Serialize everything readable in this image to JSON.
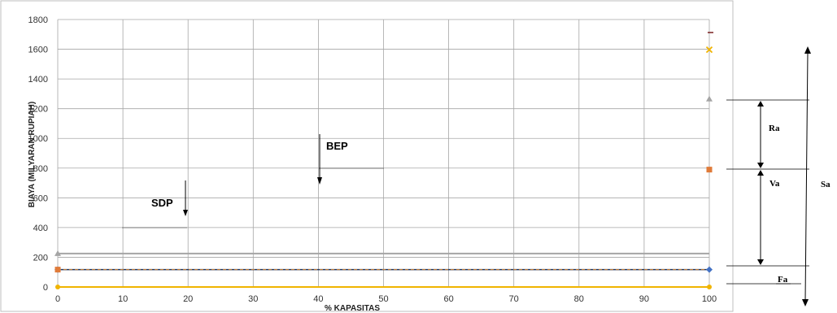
{
  "chart_data": {
    "type": "line",
    "title": "",
    "xlabel": "% KAPASITAS",
    "ylabel": "BIAYA (MILYARAN RUPIAH)",
    "xlim": [
      0,
      100
    ],
    "ylim": [
      0,
      1800
    ],
    "x_ticks": [
      0,
      10,
      20,
      30,
      40,
      50,
      60,
      70,
      80,
      90,
      100
    ],
    "y_ticks": [
      0,
      200,
      400,
      600,
      800,
      1000,
      1200,
      1400,
      1600,
      1800
    ],
    "grid": true,
    "legend": "none",
    "series": [
      {
        "color": "#f0b400",
        "marker": "circle",
        "x": [
          0,
          100
        ],
        "y": [
          0,
          0
        ]
      },
      {
        "color": "#4472c4",
        "marker": "diamond",
        "x": [
          0,
          100
        ],
        "y": [
          117,
          117
        ]
      },
      {
        "color": "#e07b39",
        "marker": "square",
        "x": [
          0,
          100
        ],
        "y": [
          117,
          790
        ]
      },
      {
        "color": "#a5a5a5",
        "marker": "triangle",
        "x": [
          0,
          100
        ],
        "y": [
          225,
          1265
        ]
      },
      {
        "color": "#f0b400",
        "marker": "x",
        "x": [
          0,
          100
        ],
        "y": [
          0,
          1597
        ]
      },
      {
        "color": "#000000",
        "marker": "dash",
        "x": [
          0,
          100
        ],
        "y": [
          117,
          117
        ]
      }
    ],
    "annotations": [
      {
        "id": "sdp",
        "text": "SDP",
        "x": 20,
        "y": 400
      },
      {
        "id": "bep",
        "text": "BEP",
        "x": 40,
        "y": 800
      }
    ],
    "side_labels": {
      "ra": "Ra",
      "va": "Va",
      "sa": "Sa",
      "fa": "Fa"
    }
  }
}
